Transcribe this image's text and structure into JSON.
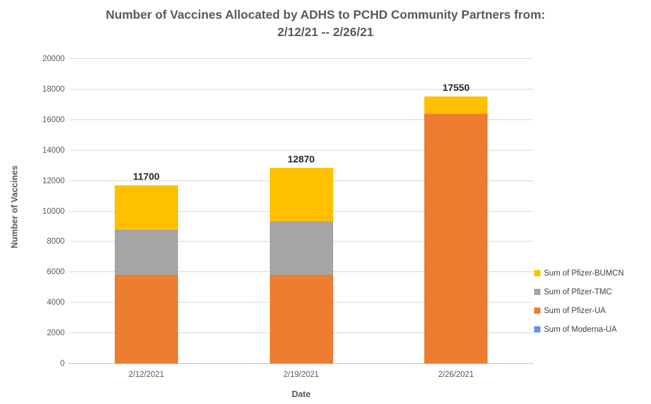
{
  "title": {
    "line1": "Number of Vaccines Allocated by ADHS to PCHD Community Partners from:",
    "line2": "2/12/21 -- 2/26/21"
  },
  "chart_data": {
    "type": "bar",
    "stacked": true,
    "title": "Number of Vaccines Allocated by ADHS to PCHD Community Partners from: 2/12/21 -- 2/26/21",
    "xlabel": "Date",
    "ylabel": "Number of Vaccines",
    "categories": [
      "2/12/2021",
      "2/19/2021",
      "2/26/2021"
    ],
    "series": [
      {
        "name": "Sum of Moderna-UA",
        "color": "#5B9BD5",
        "values": [
          0,
          0,
          0
        ]
      },
      {
        "name": "Sum of Pfizer-UA",
        "color": "#ED7D31",
        "values": [
          5850,
          5850,
          16380
        ]
      },
      {
        "name": "Sum of Pfizer-TMC",
        "color": "#A5A5A5",
        "values": [
          2925,
          3510,
          0
        ]
      },
      {
        "name": "Sum of Pfizer-BUMCN",
        "color": "#FFC000",
        "values": [
          2925,
          3510,
          1170
        ]
      }
    ],
    "totals": [
      11700,
      12870,
      17550
    ],
    "ylim": [
      0,
      20000
    ],
    "yticks": [
      0,
      2000,
      4000,
      6000,
      8000,
      10000,
      12000,
      14000,
      16000,
      18000,
      20000
    ],
    "grid": "horizontal",
    "legend_position": "right",
    "legend": [
      "Sum of Pfizer-BUMCN",
      "Sum of Pfizer-TMC",
      "Sum of Pfizer-UA",
      "Sum of Moderna-UA"
    ],
    "colors": {
      "title_text": "#595959",
      "axis_text": "#595959",
      "data_label_text": "#262626",
      "gridline": "#D9D9D9"
    }
  }
}
